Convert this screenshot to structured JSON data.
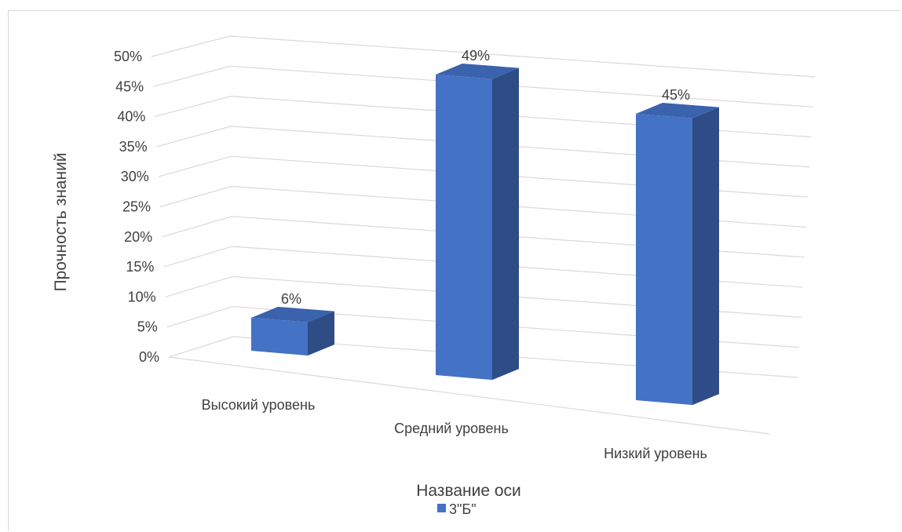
{
  "chart_data": {
    "type": "bar",
    "style": "3d-column",
    "categories": [
      "Высокий уровень",
      "Средний уровень",
      "Низкий уровень"
    ],
    "series": [
      {
        "name": "3\"Б\"",
        "values": [
          6,
          49,
          45
        ],
        "data_labels": [
          "6%",
          "49%",
          "45%"
        ],
        "color": "#4472c4"
      }
    ],
    "y_ticks": [
      "0%",
      "5%",
      "10%",
      "15%",
      "20%",
      "25%",
      "30%",
      "35%",
      "40%",
      "45%",
      "50%"
    ],
    "ylim": [
      0,
      50
    ],
    "xlabel": "Название оси",
    "ylabel": "Прочность знаний",
    "grid": true,
    "legend": "bottom"
  },
  "colors": {
    "bar_front": "#4472c4",
    "bar_side": "#2e4c85",
    "bar_top": "#3a62ad",
    "gridline": "#d9d9d9",
    "text": "#404040"
  }
}
